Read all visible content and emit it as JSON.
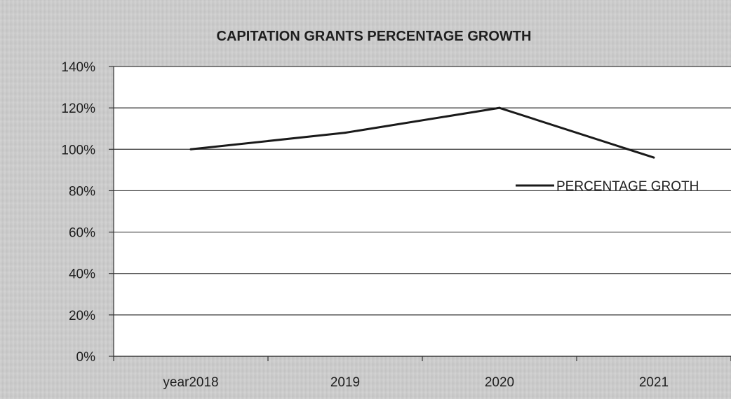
{
  "chart_data": {
    "type": "line",
    "title": "CAPITATION GRANTS PERCENTAGE GROWTH",
    "categories": [
      "year2018",
      "2019",
      "2020",
      "2021"
    ],
    "series": [
      {
        "name": "PERCENTAGE GROTH",
        "values": [
          100,
          108,
          120,
          96
        ]
      }
    ],
    "y_tick_labels": [
      "140%",
      "120%",
      "100%",
      "80%",
      "60%",
      "40%",
      "20%",
      "0%"
    ],
    "ylim": [
      0,
      140
    ],
    "y_unit": "%",
    "grid": "horizontal",
    "legend_position": "right",
    "colors": {
      "line": "#1a1a1a",
      "plot_background": "#ffffff",
      "chart_background": "#cfcfcf",
      "grid": "#3a3a3a"
    }
  }
}
